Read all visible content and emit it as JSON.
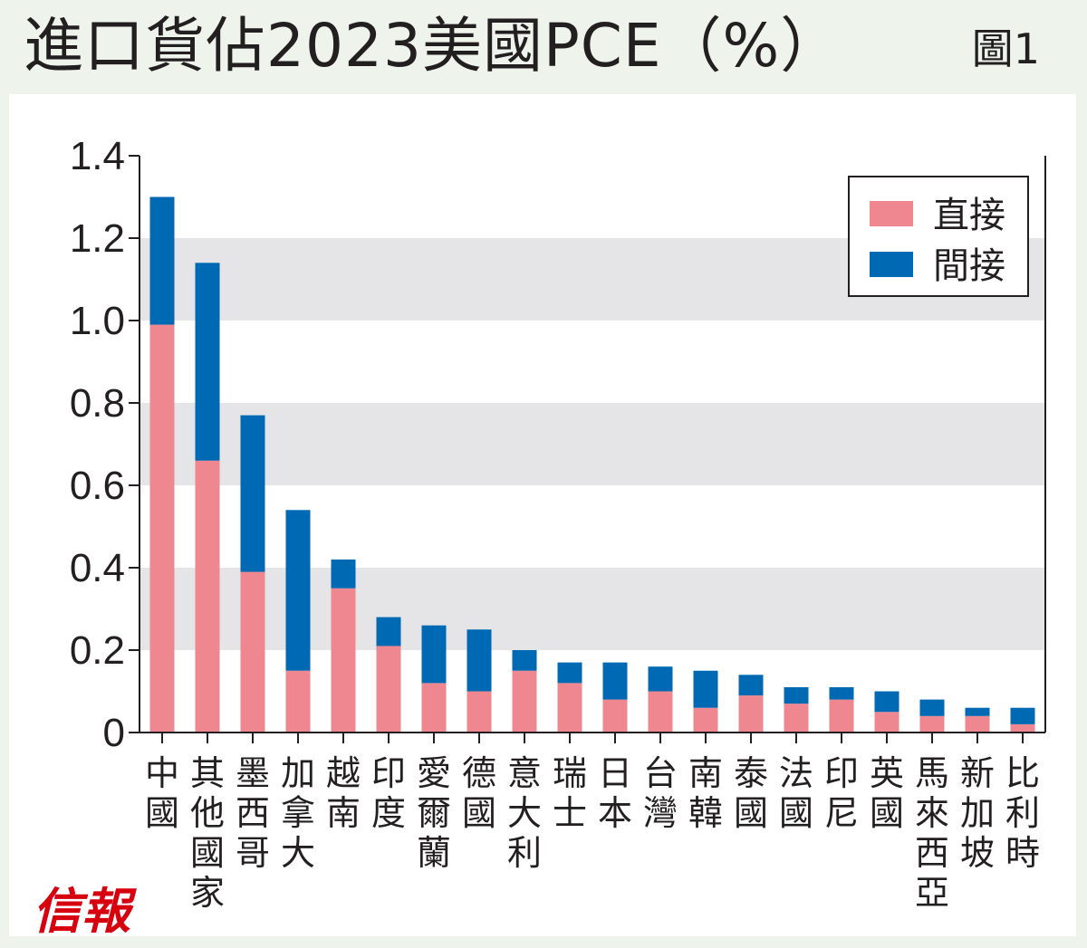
{
  "header": {
    "title": "進口貨佔2023美國PCE（%）",
    "figure_label": "圖1"
  },
  "logo": {
    "text": "信報"
  },
  "colors": {
    "direct": "#ee8790",
    "indirect": "#0069b4",
    "band": "#e5e4e6",
    "axis": "#231f20"
  },
  "chart_data": {
    "type": "bar",
    "stacked": true,
    "title": "進口貨佔2023美國PCE（%）",
    "xlabel": "",
    "ylabel": "",
    "ylim": [
      0,
      1.4
    ],
    "yticks": [
      "0",
      "0.2",
      "0.4",
      "0.6",
      "0.8",
      "1.0",
      "1.2",
      "1.4"
    ],
    "ytick_values": [
      0,
      0.2,
      0.4,
      0.6,
      0.8,
      1.0,
      1.2,
      1.4
    ],
    "grid": "alternating horizontal bands",
    "legend_position": "top-right",
    "categories": [
      "中國",
      "其他國家",
      "墨西哥",
      "加拿大",
      "越南",
      "印度",
      "愛爾蘭",
      "德國",
      "意大利",
      "瑞士",
      "日本",
      "台灣",
      "南韓",
      "泰國",
      "法國",
      "印尼",
      "英國",
      "馬來西亞",
      "新加坡",
      "比利時"
    ],
    "series": [
      {
        "name": "直接",
        "color": "#ee8790",
        "values": [
          0.99,
          0.66,
          0.39,
          0.15,
          0.35,
          0.21,
          0.12,
          0.1,
          0.15,
          0.12,
          0.08,
          0.1,
          0.06,
          0.09,
          0.07,
          0.08,
          0.05,
          0.04,
          0.04,
          0.02
        ]
      },
      {
        "name": "間接",
        "color": "#0069b4",
        "values": [
          0.31,
          0.48,
          0.38,
          0.39,
          0.07,
          0.07,
          0.14,
          0.15,
          0.05,
          0.05,
          0.09,
          0.06,
          0.09,
          0.05,
          0.04,
          0.03,
          0.05,
          0.04,
          0.02,
          0.04
        ]
      }
    ]
  }
}
